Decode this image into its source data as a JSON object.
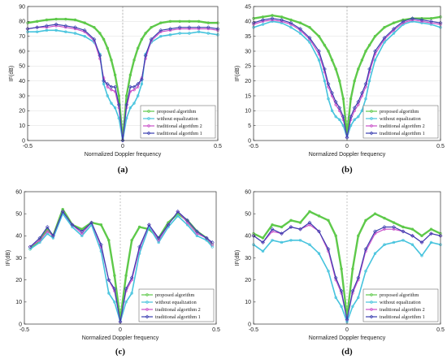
{
  "figure": {
    "colors": {
      "proposed": "#5ec94a",
      "without": "#45c3dd",
      "trad2": "#c94fc9",
      "trad1": "#3b3fb0"
    }
  },
  "chart_data": [
    {
      "type": "line",
      "caption": "(a)",
      "xlabel": "Normalized Doppler frequency",
      "ylabel": "IF(dB)",
      "xlim": [
        -0.5,
        0.5
      ],
      "ylim": [
        0,
        90
      ],
      "xticks": [
        "-0.5",
        "0",
        "0.5"
      ],
      "yticks": [
        "0",
        "10",
        "20",
        "30",
        "40",
        "50",
        "60",
        "70",
        "80",
        "90"
      ],
      "legend_position": "bottom-right",
      "grid": true,
      "x": [
        -0.5,
        -0.45,
        -0.4,
        -0.35,
        -0.3,
        -0.25,
        -0.2,
        -0.15,
        -0.12,
        -0.1,
        -0.08,
        -0.06,
        -0.04,
        -0.02,
        0,
        0.02,
        0.04,
        0.06,
        0.08,
        0.1,
        0.12,
        0.15,
        0.2,
        0.25,
        0.3,
        0.35,
        0.4,
        0.45,
        0.5
      ],
      "series": [
        {
          "name": "proposed algorithm",
          "values": [
            79,
            80,
            81,
            81.5,
            81.5,
            81,
            79,
            76,
            72,
            68,
            62,
            54,
            44,
            30,
            0,
            30,
            44,
            54,
            62,
            68,
            72,
            76,
            79,
            80,
            80,
            80,
            80,
            79,
            79
          ]
        },
        {
          "name": "without equalization",
          "values": [
            73,
            73,
            74,
            74,
            73,
            72,
            70,
            66,
            58,
            38,
            30,
            25,
            22,
            15,
            0,
            15,
            22,
            25,
            30,
            38,
            58,
            66,
            70,
            71,
            72,
            72,
            73,
            72,
            71
          ]
        },
        {
          "name": "traditional algorithm 2",
          "values": [
            75,
            76,
            76,
            77,
            76,
            75,
            73,
            67,
            55,
            42,
            36,
            34,
            33,
            22,
            0,
            22,
            33,
            34,
            36,
            42,
            55,
            67,
            73,
            74,
            75,
            75,
            75,
            75,
            74
          ]
        },
        {
          "name": "traditional algorithm 1",
          "values": [
            75,
            76,
            77,
            78,
            77,
            76,
            74,
            68,
            57,
            40,
            38,
            36,
            36,
            24,
            0,
            24,
            36,
            36,
            38,
            41,
            57,
            68,
            74,
            75,
            76,
            76,
            76,
            76,
            75
          ]
        }
      ]
    },
    {
      "type": "line",
      "caption": "(b)",
      "xlabel": "Normalized Doppler frequency",
      "ylabel": "IF(dB)",
      "xlim": [
        -0.5,
        0.5
      ],
      "ylim": [
        0,
        45
      ],
      "xticks": [
        "-0.5",
        "0",
        "0.5"
      ],
      "yticks": [
        "0",
        "5",
        "10",
        "15",
        "20",
        "25",
        "30",
        "35",
        "40",
        "45"
      ],
      "legend_position": "bottom-right",
      "grid": true,
      "x": [
        -0.5,
        -0.45,
        -0.4,
        -0.35,
        -0.3,
        -0.25,
        -0.2,
        -0.15,
        -0.12,
        -0.1,
        -0.08,
        -0.06,
        -0.04,
        -0.02,
        0,
        0.02,
        0.04,
        0.06,
        0.08,
        0.1,
        0.12,
        0.15,
        0.2,
        0.25,
        0.3,
        0.35,
        0.4,
        0.45,
        0.5
      ],
      "series": [
        {
          "name": "proposed algorithm",
          "values": [
            41,
            41.5,
            42,
            41.5,
            40.5,
            39.5,
            38,
            35,
            32,
            30,
            27,
            24,
            20,
            14,
            2,
            14,
            20,
            24,
            27,
            30,
            32,
            35,
            38,
            39.5,
            40.5,
            41,
            41,
            41,
            41.5
          ]
        },
        {
          "name": "without equalization",
          "values": [
            38,
            39,
            40,
            39.5,
            38,
            36,
            33,
            27,
            20,
            14,
            10,
            8,
            7,
            5,
            1,
            5,
            7,
            8,
            10,
            14,
            20,
            27,
            33,
            36,
            39,
            40,
            39.5,
            39,
            38
          ]
        },
        {
          "name": "traditional algorithm 2",
          "values": [
            39,
            40,
            40.5,
            40,
            39,
            37,
            34,
            29,
            23,
            18,
            15,
            12,
            10,
            7,
            1,
            7,
            10,
            12,
            15,
            18,
            23,
            29,
            34,
            37,
            39.5,
            40.5,
            40,
            39.5,
            39
          ]
        },
        {
          "name": "traditional algorithm 1",
          "values": [
            39.5,
            40.5,
            41,
            40.5,
            39.5,
            37.5,
            34.5,
            30,
            24,
            19,
            16,
            13,
            11,
            8,
            1,
            8,
            11,
            13,
            16,
            19,
            24,
            30,
            34.5,
            37.5,
            40,
            41,
            40.5,
            40,
            39.5
          ]
        }
      ]
    },
    {
      "type": "line",
      "caption": "(c)",
      "xlabel": "Normalized Doppler frequency",
      "ylabel": "IF(dB)",
      "xlim": [
        -0.5,
        0.5
      ],
      "ylim": [
        0,
        60
      ],
      "xticks": [
        "-0.5",
        "0",
        "0.5"
      ],
      "yticks": [
        "0",
        "10",
        "20",
        "30",
        "40",
        "50",
        "60"
      ],
      "legend_position": "bottom-right",
      "grid": false,
      "x": [
        -0.47,
        -0.42,
        -0.38,
        -0.35,
        -0.3,
        -0.25,
        -0.2,
        -0.15,
        -0.1,
        -0.06,
        -0.03,
        0,
        0.03,
        0.06,
        0.1,
        0.15,
        0.2,
        0.25,
        0.3,
        0.35,
        0.4,
        0.45,
        0.48
      ],
      "series": [
        {
          "name": "proposed algorithm",
          "values": [
            34,
            38,
            43,
            40,
            52,
            45,
            43,
            46,
            45,
            38,
            22,
            2,
            22,
            38,
            44,
            43,
            39,
            46,
            50,
            47,
            42,
            39,
            36
          ]
        },
        {
          "name": "without equalization",
          "values": [
            34,
            37,
            41,
            39,
            50,
            44,
            40,
            45,
            33,
            14,
            10,
            1,
            10,
            14,
            32,
            44,
            37,
            44,
            49,
            45,
            40,
            38,
            35
          ]
        },
        {
          "name": "traditional algorithm 2",
          "values": [
            35,
            38,
            42,
            40,
            51,
            45,
            41,
            46,
            35,
            20,
            15,
            1,
            15,
            20,
            34,
            45,
            38,
            45,
            51,
            46,
            41,
            39,
            36
          ]
        },
        {
          "name": "traditional algorithm 1",
          "values": [
            35,
            39,
            44,
            40,
            51,
            45,
            42,
            46,
            36,
            20,
            16,
            1,
            16,
            21,
            35,
            45,
            39,
            45,
            51,
            47,
            42,
            39,
            37
          ]
        }
      ]
    },
    {
      "type": "line",
      "caption": "(d)",
      "xlabel": "Normalized Doppler frequency",
      "ylabel": "IF(dB)",
      "xlim": [
        -0.5,
        0.5
      ],
      "ylim": [
        0,
        60
      ],
      "xticks": [
        "-0.5",
        "0",
        "0.5"
      ],
      "yticks": [
        "0",
        "10",
        "20",
        "30",
        "40",
        "50",
        "60"
      ],
      "legend_position": "bottom-right",
      "grid": false,
      "x": [
        -0.5,
        -0.45,
        -0.4,
        -0.35,
        -0.3,
        -0.25,
        -0.2,
        -0.15,
        -0.1,
        -0.06,
        -0.03,
        0,
        0.03,
        0.06,
        0.1,
        0.15,
        0.2,
        0.25,
        0.3,
        0.35,
        0.4,
        0.45,
        0.5
      ],
      "series": [
        {
          "name": "proposed algorithm",
          "values": [
            41,
            39,
            45,
            44,
            47,
            46,
            51,
            49,
            47,
            40,
            25,
            3,
            25,
            40,
            47,
            50,
            48,
            46,
            44,
            43,
            40,
            43,
            41
          ]
        },
        {
          "name": "without equalization",
          "values": [
            36,
            33,
            38,
            37,
            38,
            38,
            36,
            32,
            24,
            12,
            8,
            1,
            8,
            12,
            24,
            32,
            36,
            37,
            38,
            36,
            31,
            37,
            36
          ]
        },
        {
          "name": "traditional algorithm 2",
          "values": [
            40,
            37,
            42,
            41,
            44,
            43,
            45,
            42,
            33,
            20,
            14,
            2,
            14,
            20,
            33,
            41,
            43,
            43,
            42,
            40,
            37,
            41,
            40
          ]
        },
        {
          "name": "traditional algorithm 1",
          "values": [
            40,
            37,
            43,
            41,
            44,
            43,
            46,
            42,
            34,
            21,
            15,
            2,
            15,
            21,
            34,
            42,
            44,
            44,
            42,
            40,
            37,
            41,
            40
          ]
        }
      ]
    }
  ]
}
